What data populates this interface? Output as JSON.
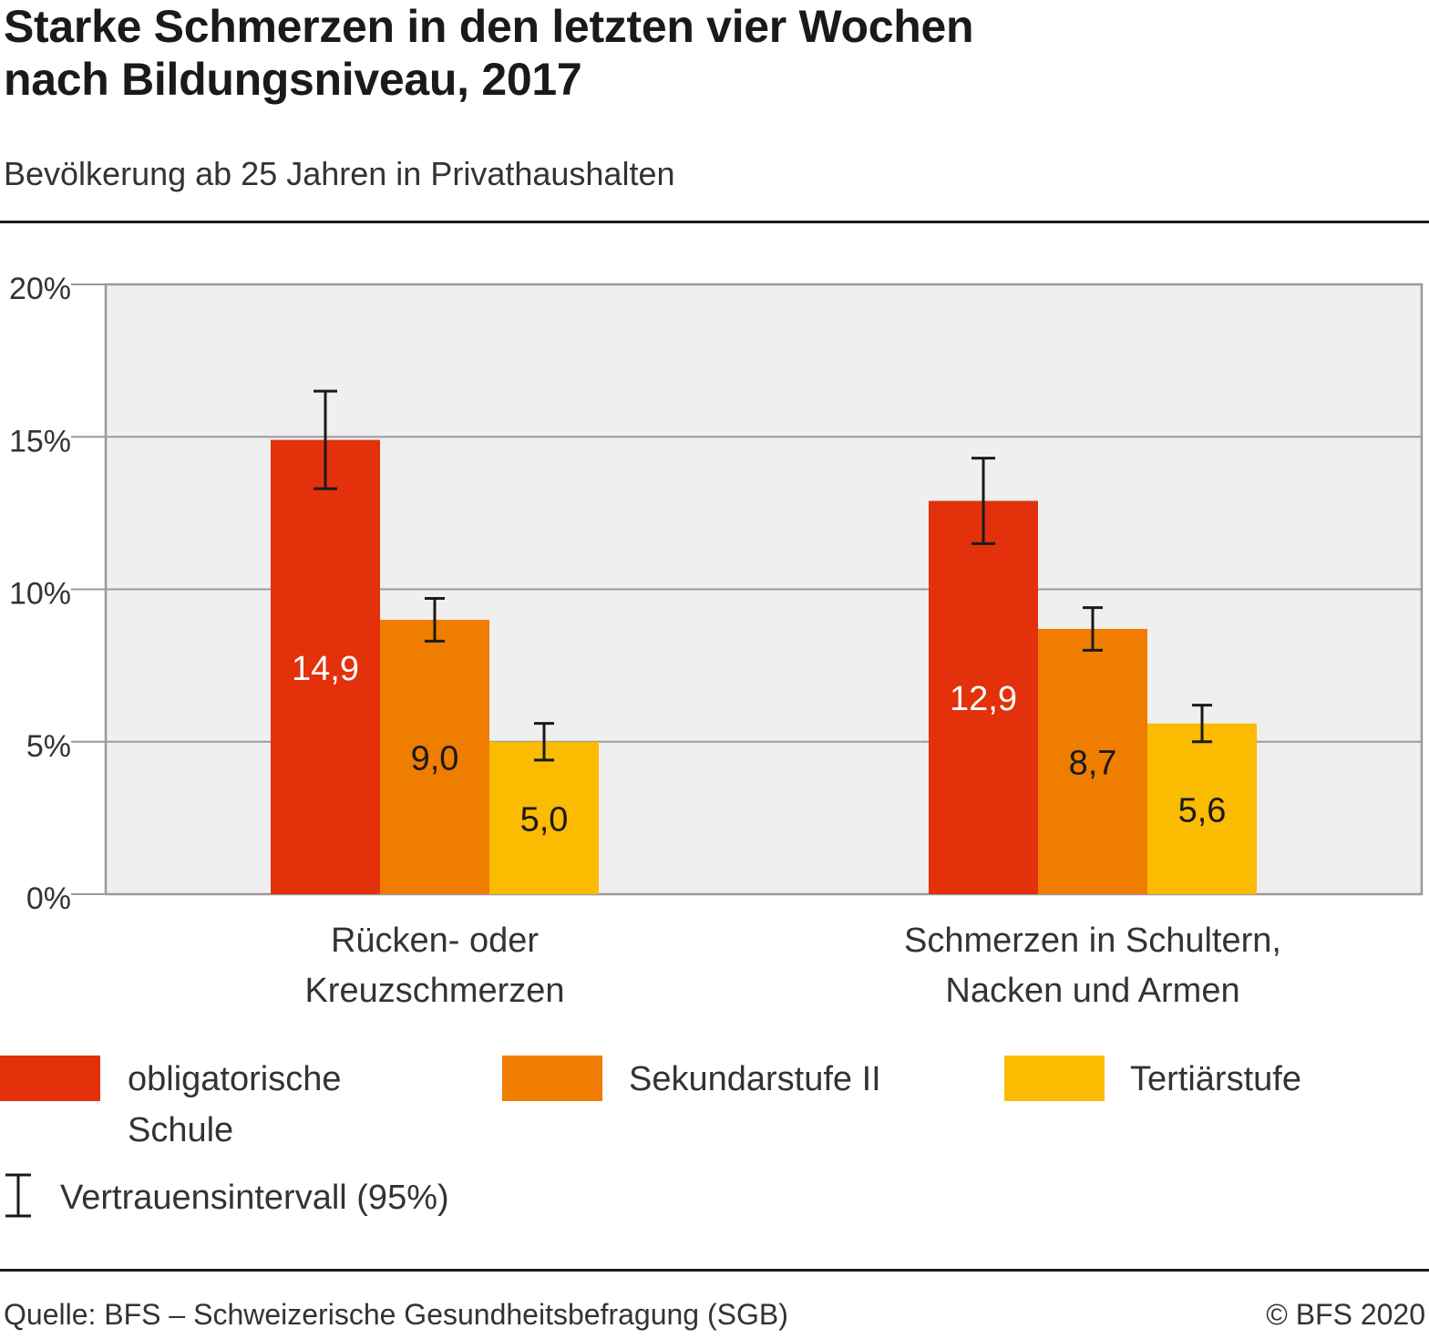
{
  "header": {
    "title_line1": "Starke Schmerzen in den letzten vier Wochen",
    "title_line2": "nach Bildungsniveau, 2017",
    "subtitle": "Bevölkerung ab 25 Jahren in Privathaushalten"
  },
  "chart_data": {
    "type": "bar",
    "categories": [
      [
        "Rücken- oder",
        "Kreuzschmerzen"
      ],
      [
        "Schmerzen in Schultern,",
        "Nacken und Armen"
      ]
    ],
    "series": [
      {
        "name": "obligatorische Schule",
        "color": "#e3310b",
        "values": [
          14.9,
          12.9
        ],
        "labels": [
          "14,9",
          "12,9"
        ],
        "ci": [
          [
            13.3,
            16.5
          ],
          [
            11.5,
            14.3
          ]
        ]
      },
      {
        "name": "Sekundarstufe II",
        "color": "#ef7d00",
        "values": [
          9.0,
          8.7
        ],
        "labels": [
          "9,0",
          "8,7"
        ],
        "ci": [
          [
            8.3,
            9.7
          ],
          [
            8.0,
            9.4
          ]
        ]
      },
      {
        "name": "Tertiärstufe",
        "color": "#fbbb00",
        "values": [
          5.0,
          5.6
        ],
        "labels": [
          "5,0",
          "5,6"
        ],
        "ci": [
          [
            4.4,
            5.6
          ],
          [
            5.0,
            6.2
          ]
        ]
      }
    ],
    "yticks": [
      0,
      5,
      10,
      15,
      20
    ],
    "ytick_labels": [
      "0%",
      "5%",
      "10%",
      "15%",
      "20%"
    ],
    "ylim": [
      0,
      20
    ],
    "grid": true,
    "plot_background": "#efefef",
    "legend_position": "bottom"
  },
  "legend": {
    "item1_line1": "obligatorische",
    "item1_line2": "Schule",
    "item2": "Sekundarstufe II",
    "item3": "Tertiärstufe",
    "ci_label": "Vertrauensintervall (95%)"
  },
  "footer": {
    "source": "Quelle: BFS – Schweizerische Gesundheitsbefragung (SGB)",
    "copyright": "© BFS 2020"
  }
}
